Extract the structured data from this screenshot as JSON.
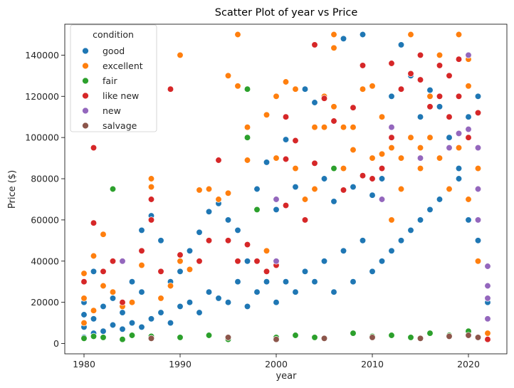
{
  "chart_data": {
    "type": "scatter",
    "title": "Scatter Plot of year vs Price",
    "xlabel": "year",
    "ylabel": "Price ($)",
    "xlim": [
      1978,
      2024
    ],
    "ylim": [
      -5000,
      155000
    ],
    "x_ticks": [
      1980,
      1990,
      2000,
      2010,
      2020
    ],
    "y_ticks": [
      0,
      20000,
      40000,
      60000,
      80000,
      100000,
      120000,
      140000
    ],
    "grid": false,
    "legend": {
      "title": "condition",
      "placement": "top-left"
    },
    "series": [
      {
        "name": "good",
        "color": "#1f77b4",
        "points": [
          [
            1980,
            3000
          ],
          [
            1980,
            8000
          ],
          [
            1980,
            14000
          ],
          [
            1980,
            20000
          ],
          [
            1981,
            5000
          ],
          [
            1981,
            12000
          ],
          [
            1981,
            35000
          ],
          [
            1982,
            6000
          ],
          [
            1982,
            18000
          ],
          [
            1983,
            9000
          ],
          [
            1983,
            22000
          ],
          [
            1984,
            7000
          ],
          [
            1984,
            15000
          ],
          [
            1985,
            10000
          ],
          [
            1985,
            30000
          ],
          [
            1986,
            8000
          ],
          [
            1986,
            25000
          ],
          [
            1986,
            55000
          ],
          [
            1987,
            12000
          ],
          [
            1987,
            62000
          ],
          [
            1988,
            15000
          ],
          [
            1988,
            50000
          ],
          [
            1989,
            10000
          ],
          [
            1989,
            30000
          ],
          [
            1990,
            18000
          ],
          [
            1990,
            35000
          ],
          [
            1991,
            20000
          ],
          [
            1991,
            45000
          ],
          [
            1992,
            15000
          ],
          [
            1992,
            54000
          ],
          [
            1993,
            25000
          ],
          [
            1993,
            64000
          ],
          [
            1994,
            22000
          ],
          [
            1994,
            68000
          ],
          [
            1995,
            20000
          ],
          [
            1995,
            60000
          ],
          [
            1996,
            30000
          ],
          [
            1996,
            55000
          ],
          [
            1997,
            18000
          ],
          [
            1997,
            40000
          ],
          [
            1998,
            25000
          ],
          [
            1998,
            75000
          ],
          [
            1999,
            30000
          ],
          [
            1999,
            88000
          ],
          [
            2000,
            20000
          ],
          [
            2000,
            65000
          ],
          [
            2001,
            30000
          ],
          [
            2001,
            99000
          ],
          [
            2002,
            25000
          ],
          [
            2002,
            76000
          ],
          [
            2003,
            35000
          ],
          [
            2003,
            123500
          ],
          [
            2004,
            30000
          ],
          [
            2004,
            117000
          ],
          [
            2005,
            40000
          ],
          [
            2005,
            80000
          ],
          [
            2006,
            25000
          ],
          [
            2006,
            69000
          ],
          [
            2007,
            45000
          ],
          [
            2007,
            148000
          ],
          [
            2008,
            30000
          ],
          [
            2008,
            76000
          ],
          [
            2009,
            50000
          ],
          [
            2009,
            150000
          ],
          [
            2010,
            35000
          ],
          [
            2010,
            72000
          ],
          [
            2011,
            40000
          ],
          [
            2011,
            80000
          ],
          [
            2012,
            45000
          ],
          [
            2012,
            120000
          ],
          [
            2013,
            50000
          ],
          [
            2013,
            145000
          ],
          [
            2014,
            55000
          ],
          [
            2014,
            130000
          ],
          [
            2015,
            60000
          ],
          [
            2015,
            110000
          ],
          [
            2016,
            65000
          ],
          [
            2016,
            123000
          ],
          [
            2017,
            70000
          ],
          [
            2017,
            115000
          ],
          [
            2018,
            75000
          ],
          [
            2018,
            100000
          ],
          [
            2019,
            80000
          ],
          [
            2019,
            85000
          ],
          [
            2020,
            60000
          ],
          [
            2020,
            110000
          ],
          [
            2021,
            50000
          ],
          [
            2021,
            120000
          ],
          [
            2022,
            20000
          ]
        ]
      },
      {
        "name": "excellent",
        "color": "#ff7f0e",
        "points": [
          [
            1980,
            34000
          ],
          [
            1980,
            10000
          ],
          [
            1980,
            22000
          ],
          [
            1981,
            42500
          ],
          [
            1981,
            16000
          ],
          [
            1982,
            53000
          ],
          [
            1982,
            28000
          ],
          [
            1983,
            25000
          ],
          [
            1984,
            18000
          ],
          [
            1985,
            20000
          ],
          [
            1986,
            38000
          ],
          [
            1987,
            80000
          ],
          [
            1987,
            76000
          ],
          [
            1988,
            22000
          ],
          [
            1989,
            28000
          ],
          [
            1990,
            140000
          ],
          [
            1990,
            40000
          ],
          [
            1991,
            36000
          ],
          [
            1992,
            74500
          ],
          [
            1993,
            75000
          ],
          [
            1994,
            70000
          ],
          [
            1995,
            130000
          ],
          [
            1995,
            73000
          ],
          [
            1996,
            150000
          ],
          [
            1996,
            125000
          ],
          [
            1997,
            105000
          ],
          [
            1997,
            89000
          ],
          [
            1998,
            65000
          ],
          [
            1999,
            111000
          ],
          [
            1999,
            45000
          ],
          [
            2000,
            120000
          ],
          [
            2000,
            90000
          ],
          [
            2001,
            127000
          ],
          [
            2002,
            123500
          ],
          [
            2002,
            85000
          ],
          [
            2003,
            70000
          ],
          [
            2004,
            105000
          ],
          [
            2004,
            75000
          ],
          [
            2005,
            105000
          ],
          [
            2005,
            120000
          ],
          [
            2006,
            150000
          ],
          [
            2006,
            143500
          ],
          [
            2006,
            115000
          ],
          [
            2007,
            105000
          ],
          [
            2007,
            85000
          ],
          [
            2008,
            94000
          ],
          [
            2008,
            105000
          ],
          [
            2009,
            123500
          ],
          [
            2010,
            125000
          ],
          [
            2010,
            90000
          ],
          [
            2011,
            110000
          ],
          [
            2011,
            92000
          ],
          [
            2012,
            95000
          ],
          [
            2012,
            60000
          ],
          [
            2013,
            90000
          ],
          [
            2013,
            75000
          ],
          [
            2014,
            150000
          ],
          [
            2014,
            100000
          ],
          [
            2015,
            95000
          ],
          [
            2015,
            85000
          ],
          [
            2016,
            120000
          ],
          [
            2016,
            100000
          ],
          [
            2017,
            140000
          ],
          [
            2017,
            90000
          ],
          [
            2018,
            110000
          ],
          [
            2018,
            75000
          ],
          [
            2019,
            150000
          ],
          [
            2019,
            95000
          ],
          [
            2020,
            138000
          ],
          [
            2020,
            125000
          ],
          [
            2020,
            70000
          ],
          [
            2021,
            85000
          ],
          [
            2021,
            40000
          ],
          [
            2022,
            5000
          ]
        ]
      },
      {
        "name": "fair",
        "color": "#2ca02c",
        "points": [
          [
            1980,
            2500
          ],
          [
            1981,
            3500
          ],
          [
            1982,
            3000
          ],
          [
            1983,
            75000
          ],
          [
            1984,
            2000
          ],
          [
            1985,
            4000
          ],
          [
            1987,
            3500
          ],
          [
            1990,
            3000
          ],
          [
            1993,
            4000
          ],
          [
            1995,
            2000
          ],
          [
            1997,
            123500
          ],
          [
            1997,
            100000
          ],
          [
            1998,
            65000
          ],
          [
            2000,
            3000
          ],
          [
            2002,
            4000
          ],
          [
            2004,
            3000
          ],
          [
            2006,
            85000
          ],
          [
            2008,
            5000
          ],
          [
            2010,
            3500
          ],
          [
            2012,
            4000
          ],
          [
            2014,
            3000
          ],
          [
            2016,
            5000
          ],
          [
            2018,
            4000
          ],
          [
            2020,
            6000
          ]
        ]
      },
      {
        "name": "like new",
        "color": "#d62728",
        "points": [
          [
            1980,
            30000
          ],
          [
            1981,
            95000
          ],
          [
            1981,
            58500
          ],
          [
            1982,
            35000
          ],
          [
            1983,
            40000
          ],
          [
            1984,
            20000
          ],
          [
            1986,
            45000
          ],
          [
            1987,
            70000
          ],
          [
            1987,
            60000
          ],
          [
            1988,
            35000
          ],
          [
            1989,
            123500
          ],
          [
            1990,
            43000
          ],
          [
            1992,
            40000
          ],
          [
            1993,
            50000
          ],
          [
            1994,
            89000
          ],
          [
            1995,
            50000
          ],
          [
            1996,
            40000
          ],
          [
            1997,
            48000
          ],
          [
            1998,
            40000
          ],
          [
            1999,
            35000
          ],
          [
            2000,
            38000
          ],
          [
            2001,
            110000
          ],
          [
            2001,
            89500
          ],
          [
            2001,
            67000
          ],
          [
            2002,
            98500
          ],
          [
            2003,
            60000
          ],
          [
            2004,
            145000
          ],
          [
            2004,
            87500
          ],
          [
            2005,
            119000
          ],
          [
            2006,
            108000
          ],
          [
            2007,
            74500
          ],
          [
            2008,
            114500
          ],
          [
            2009,
            135000
          ],
          [
            2009,
            81500
          ],
          [
            2010,
            80000
          ],
          [
            2011,
            85000
          ],
          [
            2012,
            136000
          ],
          [
            2012,
            100000
          ],
          [
            2013,
            123500
          ],
          [
            2014,
            131000
          ],
          [
            2015,
            140000
          ],
          [
            2015,
            128000
          ],
          [
            2016,
            115000
          ],
          [
            2017,
            135000
          ],
          [
            2017,
            120000
          ],
          [
            2018,
            130000
          ],
          [
            2018,
            110000
          ],
          [
            2019,
            138000
          ],
          [
            2019,
            120000
          ],
          [
            2020,
            100000
          ],
          [
            2021,
            112000
          ],
          [
            2021,
            95000
          ],
          [
            2022,
            2000
          ]
        ]
      },
      {
        "name": "new",
        "color": "#9467bd",
        "points": [
          [
            1984,
            40000
          ],
          [
            2000,
            70000
          ],
          [
            2000,
            40000
          ],
          [
            2011,
            70000
          ],
          [
            2012,
            105000
          ],
          [
            2015,
            90000
          ],
          [
            2018,
            95000
          ],
          [
            2019,
            102000
          ],
          [
            2020,
            140000
          ],
          [
            2020,
            104000
          ],
          [
            2021,
            95000
          ],
          [
            2021,
            75000
          ],
          [
            2021,
            60000
          ],
          [
            2022,
            37500
          ],
          [
            2022,
            28000
          ],
          [
            2022,
            22000
          ],
          [
            2022,
            12000
          ]
        ]
      },
      {
        "name": "salvage",
        "color": "#8c564b",
        "points": [
          [
            1987,
            2500
          ],
          [
            1995,
            3000
          ],
          [
            2000,
            2000
          ],
          [
            2005,
            2500
          ],
          [
            2010,
            3000
          ],
          [
            2015,
            2500
          ],
          [
            2018,
            3500
          ],
          [
            2020,
            4000
          ],
          [
            2021,
            3000
          ]
        ]
      }
    ]
  }
}
